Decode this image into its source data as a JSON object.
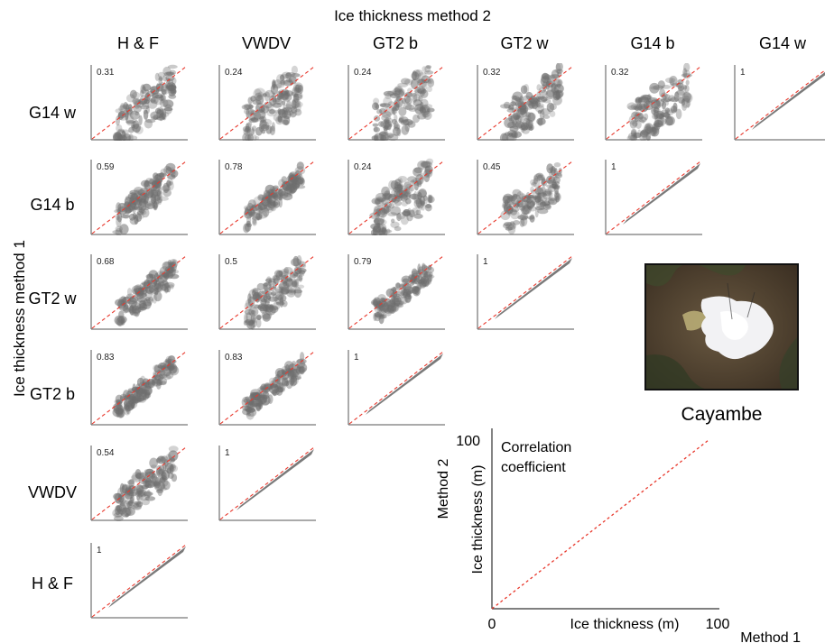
{
  "header": {
    "x_title": "Ice thickness method 2",
    "y_title": "Ice thickness method 1"
  },
  "columns": [
    "H & F",
    "VWDV",
    "GT2 b",
    "GT2 w",
    "G14 b",
    "G14 w"
  ],
  "rows": [
    "G14 w",
    "G14 b",
    "GT2 w",
    "GT2 b",
    "VWDV",
    "H & F"
  ],
  "thumbnail": {
    "caption": "Cayambe"
  },
  "legend": {
    "corr_line1": "Correlation",
    "corr_line2": "coefficient",
    "y_title": "Ice thickness (m)",
    "y_method": "Method 2",
    "x_title": "Ice thickness (m)",
    "x_method": "Method 1",
    "tick_zero": "0",
    "tick_max_y": "100",
    "tick_max_x": "100"
  },
  "chart_data": {
    "type": "scatter",
    "description_of_layout": "lower-triangular matrix of scatter plots comparing ice thickness methods",
    "x_range": [
      0,
      100
    ],
    "y_range": [
      0,
      100
    ],
    "reference_line": "1:1",
    "panels": [
      {
        "row": "G14 w",
        "col": "H & F",
        "r": "0.31"
      },
      {
        "row": "G14 w",
        "col": "VWDV",
        "r": "0.24"
      },
      {
        "row": "G14 w",
        "col": "GT2 b",
        "r": "0.24"
      },
      {
        "row": "G14 w",
        "col": "GT2 w",
        "r": "0.32"
      },
      {
        "row": "G14 w",
        "col": "G14 b",
        "r": "0.32"
      },
      {
        "row": "G14 w",
        "col": "G14 w",
        "r": "1"
      },
      {
        "row": "G14 b",
        "col": "H & F",
        "r": "0.59"
      },
      {
        "row": "G14 b",
        "col": "VWDV",
        "r": "0.78"
      },
      {
        "row": "G14 b",
        "col": "GT2 b",
        "r": "0.24"
      },
      {
        "row": "G14 b",
        "col": "GT2 w",
        "r": "0.45"
      },
      {
        "row": "G14 b",
        "col": "G14 b",
        "r": "1"
      },
      {
        "row": "GT2 w",
        "col": "H & F",
        "r": "0.68"
      },
      {
        "row": "GT2 w",
        "col": "VWDV",
        "r": "0.5"
      },
      {
        "row": "GT2 w",
        "col": "GT2 b",
        "r": "0.79"
      },
      {
        "row": "GT2 w",
        "col": "GT2 w",
        "r": "1"
      },
      {
        "row": "GT2 b",
        "col": "H & F",
        "r": "0.83"
      },
      {
        "row": "GT2 b",
        "col": "VWDV",
        "r": "0.83"
      },
      {
        "row": "GT2 b",
        "col": "GT2 b",
        "r": "1"
      },
      {
        "row": "VWDV",
        "col": "H & F",
        "r": "0.54"
      },
      {
        "row": "VWDV",
        "col": "VWDV",
        "r": "1"
      },
      {
        "row": "H & F",
        "col": "H & F",
        "r": "1"
      }
    ]
  }
}
